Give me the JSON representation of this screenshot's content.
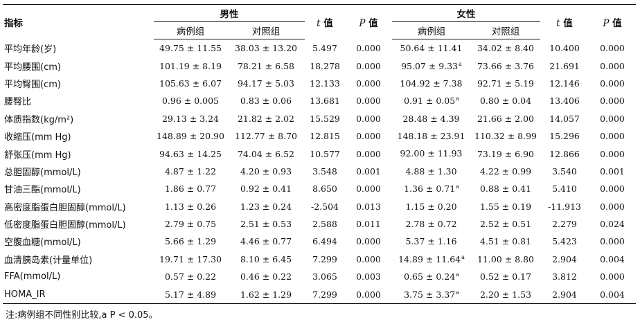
{
  "header": {
    "indicator": "指标",
    "male": "男性",
    "female": "女性",
    "case": "病例组",
    "control": "对照组",
    "t_italic": "t",
    "p_italic": "P",
    "value_suffix": " 值"
  },
  "rows": [
    {
      "name": "平均年龄(岁)",
      "m_case": "49.75 ± 11.55",
      "m_ctrl": "38.03 ± 13.20",
      "m_t": "5.497",
      "m_p": "0.000",
      "f_case": "50.64 ± 11.41",
      "f_case_mark": "",
      "f_ctrl": "34.02 ± 8.40",
      "f_t": "10.400",
      "f_p": "0.000"
    },
    {
      "name": "平均腰围(cm)",
      "m_case": "101.19 ± 8.19",
      "m_ctrl": "78.21 ± 6.58",
      "m_t": "18.278",
      "m_p": "0.000",
      "f_case": "95.07 ± 9.33",
      "f_case_mark": "a",
      "f_ctrl": "73.66 ± 3.76",
      "f_t": "21.691",
      "f_p": "0.000"
    },
    {
      "name": "平均臀围(cm)",
      "m_case": "105.63 ± 6.07",
      "m_ctrl": "94.17 ± 5.03",
      "m_t": "12.133",
      "m_p": "0.000",
      "f_case": "104.92 ± 7.38",
      "f_case_mark": "",
      "f_ctrl": "92.71 ± 5.19",
      "f_t": "12.146",
      "f_p": "0.000"
    },
    {
      "name": "腰臀比",
      "m_case": "0.96 ± 0.005",
      "m_ctrl": "0.83 ± 0.06",
      "m_t": "13.681",
      "m_p": "0.000",
      "f_case": "0.91 ± 0.05",
      "f_case_mark": "a",
      "f_ctrl": "0.80 ± 0.04",
      "f_t": "13.406",
      "f_p": "0.000"
    },
    {
      "name": "体质指数(kg/m²)",
      "m_case": "29.13 ± 3.24",
      "m_ctrl": "21.82 ± 2.02",
      "m_t": "15.529",
      "m_p": "0.000",
      "f_case": "28.48 ± 4.39",
      "f_case_mark": "",
      "f_ctrl": "21.66 ± 2.00",
      "f_t": "14.057",
      "f_p": "0.000"
    },
    {
      "name": "收缩压(mm Hg)",
      "m_case": "148.89 ± 20.90",
      "m_ctrl": "112.77 ± 8.70",
      "m_t": "12.815",
      "m_p": "0.000",
      "f_case": "148.18 ± 23.91",
      "f_case_mark": "",
      "f_ctrl": "110.32 ± 8.99",
      "f_t": "15.296",
      "f_p": "0.000"
    },
    {
      "name": "舒张压(mm Hg)",
      "m_case": "94.63 ± 14.25",
      "m_ctrl": "74.04 ± 6.52",
      "m_t": "10.577",
      "m_p": "0.000",
      "f_case": "92.00 ± 11.93",
      "f_case_mark": "",
      "f_ctrl": "73.19 ± 6.90",
      "f_t": "12.866",
      "f_p": "0.000"
    },
    {
      "name": "总胆固醇(mmol/L)",
      "m_case": "4.87 ± 1.22",
      "m_ctrl": "4.20 ± 0.93",
      "m_t": "3.548",
      "m_p": "0.001",
      "f_case": "4.88 ± 1.30",
      "f_case_mark": "",
      "f_ctrl": "4.22 ± 0.99",
      "f_t": "3.540",
      "f_p": "0.001"
    },
    {
      "name": "甘油三酯(mmol/L)",
      "m_case": "1.86 ± 0.77",
      "m_ctrl": "0.92 ± 0.41",
      "m_t": "8.650",
      "m_p": "0.000",
      "f_case": "1.36 ± 0.71",
      "f_case_mark": "a",
      "f_ctrl": "0.88 ± 0.41",
      "f_t": "5.410",
      "f_p": "0.000"
    },
    {
      "name": "高密度脂蛋白胆固醇(mmol/L)",
      "m_case": "1.13 ± 0.26",
      "m_ctrl": "1.23 ± 0.24",
      "m_t": "-2.504",
      "m_p": "0.013",
      "f_case": "1.15 ± 0.20",
      "f_case_mark": "",
      "f_ctrl": "1.55 ± 0.19",
      "f_t": "-11.913",
      "f_p": "0.000"
    },
    {
      "name": "低密度脂蛋白胆固醇(mmol/L)",
      "m_case": "2.79 ± 0.75",
      "m_ctrl": "2.51 ± 0.53",
      "m_t": "2.588",
      "m_p": "0.011",
      "f_case": "2.78 ± 0.72",
      "f_case_mark": "",
      "f_ctrl": "2.52 ± 0.51",
      "f_t": "2.279",
      "f_p": "0.024"
    },
    {
      "name": "空腹血糖(mmol/L)",
      "m_case": "5.66 ± 1.29",
      "m_ctrl": "4.46 ± 0.77",
      "m_t": "6.494",
      "m_p": "0.000",
      "f_case": "5.37 ± 1.16",
      "f_case_mark": "",
      "f_ctrl": "4.51 ± 0.81",
      "f_t": "5.423",
      "f_p": "0.000"
    },
    {
      "name": "血清胰岛素(计量单位)",
      "m_case": "19.71 ± 17.30",
      "m_ctrl": "8.10 ± 6.45",
      "m_t": "7.299",
      "m_p": "0.000",
      "f_case": "14.89 ± 11.64",
      "f_case_mark": "a",
      "f_ctrl": "11.00 ± 8.80",
      "f_t": "2.904",
      "f_p": "0.004"
    },
    {
      "name": "FFA(mmol/L)",
      "m_case": "0.57 ± 0.22",
      "m_ctrl": "0.46 ± 0.22",
      "m_t": "3.065",
      "m_p": "0.003",
      "f_case": "0.65 ± 0.24",
      "f_case_mark": "a",
      "f_ctrl": "0.52 ± 0.17",
      "f_t": "3.812",
      "f_p": "0.000"
    },
    {
      "name": "HOMA_IR",
      "m_case": "5.17 ± 4.89",
      "m_ctrl": "1.62 ± 1.29",
      "m_t": "7.299",
      "m_p": "0.000",
      "f_case": "3.75 ± 3.37",
      "f_case_mark": "a",
      "f_ctrl": "2.20 ± 1.53",
      "f_t": "2.904",
      "f_p": "0.004"
    }
  ],
  "note": "注:病例组不同性别比较,a P < 0.05。"
}
